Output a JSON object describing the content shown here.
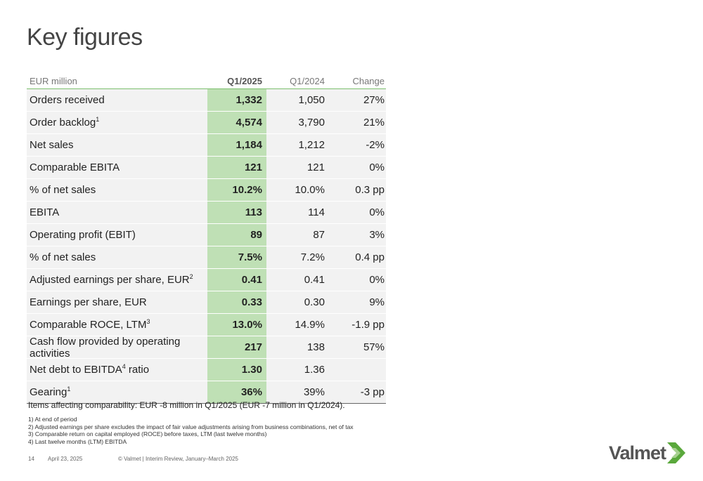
{
  "title": "Key figures",
  "table": {
    "headers": [
      "EUR million",
      "Q1/2025",
      "Q1/2024",
      "Change"
    ],
    "rows": [
      {
        "label": "Orders received",
        "sup": "",
        "label_after": "",
        "q1_2025": "1,332",
        "q1_2024": "1,050",
        "change": "27%"
      },
      {
        "label": "Order backlog",
        "sup": "1",
        "label_after": "",
        "q1_2025": "4,574",
        "q1_2024": "3,790",
        "change": "21%"
      },
      {
        "label": "Net sales",
        "sup": "",
        "label_after": "",
        "q1_2025": "1,184",
        "q1_2024": "1,212",
        "change": "-2%"
      },
      {
        "label": "Comparable EBITA",
        "sup": "",
        "label_after": "",
        "q1_2025": "121",
        "q1_2024": "121",
        "change": "0%"
      },
      {
        "label": "% of net sales",
        "sup": "",
        "label_after": "",
        "q1_2025": "10.2%",
        "q1_2024": "10.0%",
        "change": "0.3 pp"
      },
      {
        "label": "EBITA",
        "sup": "",
        "label_after": "",
        "q1_2025": "113",
        "q1_2024": "114",
        "change": "0%"
      },
      {
        "label": "Operating profit (EBIT)",
        "sup": "",
        "label_after": "",
        "q1_2025": "89",
        "q1_2024": "87",
        "change": "3%"
      },
      {
        "label": "% of net sales",
        "sup": "",
        "label_after": "",
        "q1_2025": "7.5%",
        "q1_2024": "7.2%",
        "change": "0.4 pp"
      },
      {
        "label": "Adjusted earnings per share, EUR",
        "sup": "2",
        "label_after": "",
        "q1_2025": "0.41",
        "q1_2024": "0.41",
        "change": "0%"
      },
      {
        "label": "Earnings per share, EUR",
        "sup": "",
        "label_after": "",
        "q1_2025": "0.33",
        "q1_2024": "0.30",
        "change": "9%"
      },
      {
        "label": "Comparable ROCE, LTM",
        "sup": "3",
        "label_after": "",
        "q1_2025": "13.0%",
        "q1_2024": "14.9%",
        "change": "-1.9 pp"
      },
      {
        "label": "Cash flow provided by operating activities",
        "sup": "",
        "label_after": "",
        "q1_2025": "217",
        "q1_2024": "138",
        "change": "57%"
      },
      {
        "label": "Net debt to EBITDA",
        "sup": "4",
        "label_after": " ratio",
        "q1_2025": "1.30",
        "q1_2024": "1.36",
        "change": ""
      },
      {
        "label": "Gearing",
        "sup": "1",
        "label_after": "",
        "q1_2025": "36%",
        "q1_2024": "39%",
        "change": "-3 pp"
      }
    ]
  },
  "note": "Items affecting comparability: EUR -8 million in Q1/2025 (EUR -7 million in Q1/2024).",
  "footnotes": [
    "1)  At end of period",
    "2)  Adjusted earnings per share excludes the impact of fair value adjustments arising from business combinations, net of tax",
    "3)  Comparable return on capital employed (ROCE) before taxes, LTM (last twelve months)",
    "4)  Last twelve months (LTM) EBITDA"
  ],
  "footer": {
    "page": "14",
    "date": "April 23, 2025",
    "copyright": "© Valmet   | Interim Review, January–March 2025"
  },
  "logo": {
    "text": "Valmet",
    "colors": {
      "dark": "#555555",
      "green": "#5aa83c",
      "light_green": "#a6d08f"
    }
  }
}
